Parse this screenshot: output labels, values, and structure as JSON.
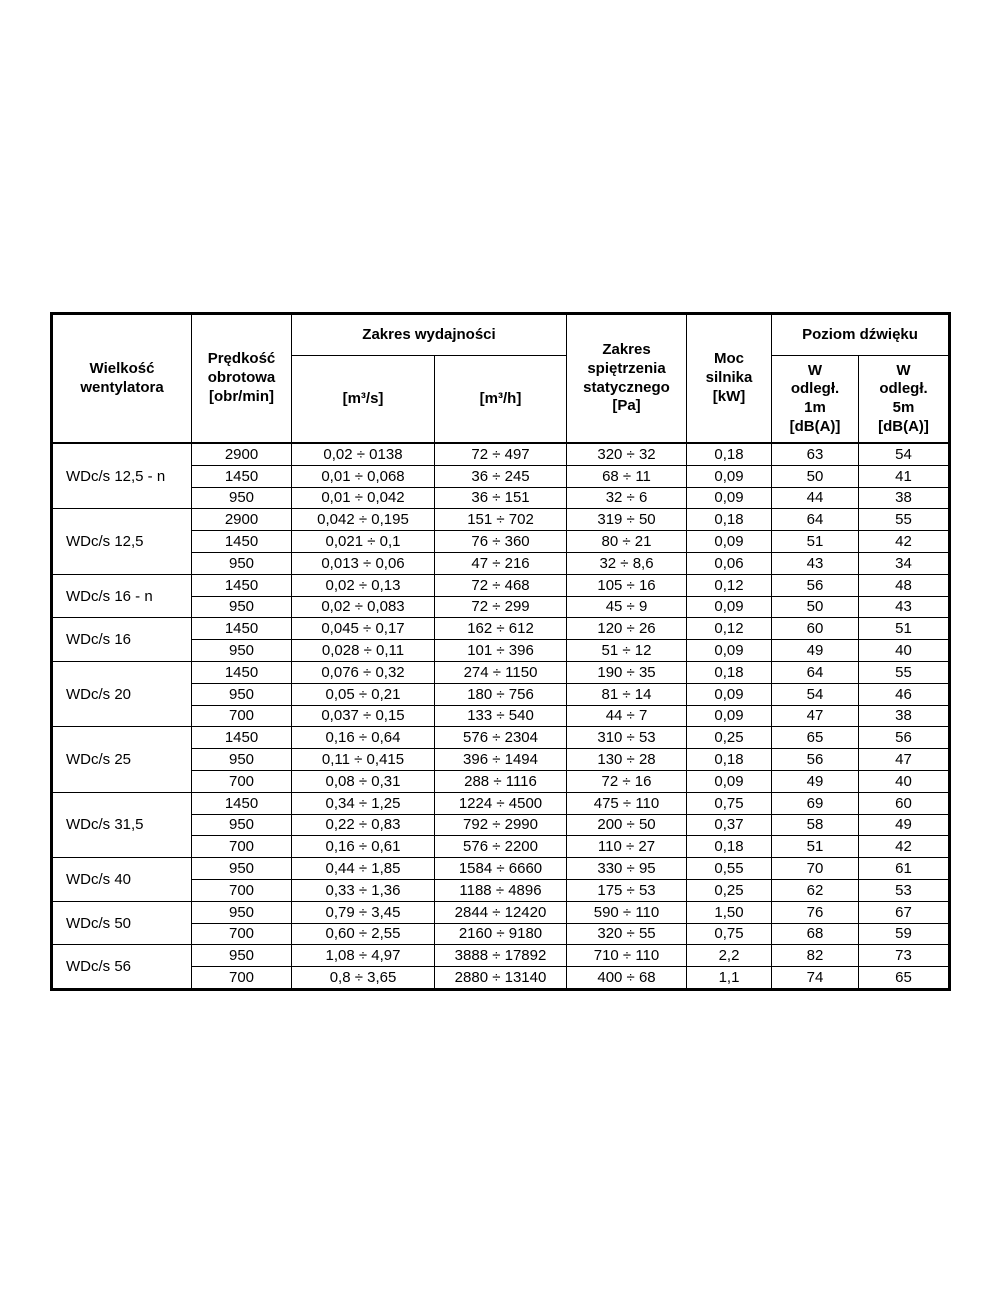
{
  "page": {
    "background": "#ffffff",
    "text_color": "#000000"
  },
  "table": {
    "header": {
      "fan_size": "Wielkość\nwentylatora",
      "speed": "Prędkość\nobrotowa\n[obr/min]",
      "capacity_group": "Zakres  wydajności",
      "capacity_m3s": "[m³/s]",
      "capacity_m3h": "[m³/h]",
      "static_pressure": "Zakres\nspiętrzenia\nstatycznego\n[Pa]",
      "motor_power": "Moc\nsilnika\n[kW]",
      "sound_group": "Poziom  dźwięku",
      "sound_1m": "W\nodległ.\n1m\n[dB(A)]",
      "sound_5m": "W\nodległ.\n5m\n[dB(A)]"
    },
    "column_names": [
      "speed",
      "capacity_m3s",
      "capacity_m3h",
      "static_pressure",
      "motor_power",
      "sound_1m",
      "sound_5m"
    ],
    "groups": [
      {
        "name": "WDc/s 12,5 - n",
        "rows": [
          [
            "2900",
            "0,02 ÷ 0138",
            "72 ÷ 497",
            "320 ÷ 32",
            "0,18",
            "63",
            "54"
          ],
          [
            "1450",
            "0,01 ÷ 0,068",
            "36 ÷ 245",
            "68 ÷ 11",
            "0,09",
            "50",
            "41"
          ],
          [
            "950",
            "0,01 ÷ 0,042",
            "36 ÷ 151",
            "32 ÷ 6",
            "0,09",
            "44",
            "38"
          ]
        ]
      },
      {
        "name": "WDc/s 12,5",
        "rows": [
          [
            "2900",
            "0,042 ÷ 0,195",
            "151 ÷ 702",
            "319 ÷ 50",
            "0,18",
            "64",
            "55"
          ],
          [
            "1450",
            "0,021 ÷ 0,1",
            "76 ÷ 360",
            "80 ÷ 21",
            "0,09",
            "51",
            "42"
          ],
          [
            "950",
            "0,013 ÷ 0,06",
            "47 ÷ 216",
            "32 ÷ 8,6",
            "0,06",
            "43",
            "34"
          ]
        ]
      },
      {
        "name": "WDc/s 16 - n",
        "rows": [
          [
            "1450",
            "0,02 ÷ 0,13",
            "72 ÷ 468",
            "105 ÷ 16",
            "0,12",
            "56",
            "48"
          ],
          [
            "950",
            "0,02 ÷ 0,083",
            "72 ÷ 299",
            "45 ÷ 9",
            "0,09",
            "50",
            "43"
          ]
        ]
      },
      {
        "name": "WDc/s 16",
        "rows": [
          [
            "1450",
            "0,045 ÷ 0,17",
            "162 ÷ 612",
            "120 ÷ 26",
            "0,12",
            "60",
            "51"
          ],
          [
            "950",
            "0,028 ÷ 0,11",
            "101 ÷ 396",
            "51 ÷ 12",
            "0,09",
            "49",
            "40"
          ]
        ]
      },
      {
        "name": "WDc/s 20",
        "rows": [
          [
            "1450",
            "0,076 ÷ 0,32",
            "274 ÷ 1150",
            "190 ÷ 35",
            "0,18",
            "64",
            "55"
          ],
          [
            "950",
            "0,05 ÷ 0,21",
            "180 ÷ 756",
            "81 ÷ 14",
            "0,09",
            "54",
            "46"
          ],
          [
            "700",
            "0,037 ÷ 0,15",
            "133 ÷ 540",
            "44 ÷ 7",
            "0,09",
            "47",
            "38"
          ]
        ]
      },
      {
        "name": "WDc/s 25",
        "rows": [
          [
            "1450",
            "0,16 ÷ 0,64",
            "576 ÷ 2304",
            "310 ÷ 53",
            "0,25",
            "65",
            "56"
          ],
          [
            "950",
            "0,11 ÷ 0,415",
            "396 ÷ 1494",
            "130 ÷ 28",
            "0,18",
            "56",
            "47"
          ],
          [
            "700",
            "0,08 ÷ 0,31",
            "288 ÷ 1116",
            "72 ÷ 16",
            "0,09",
            "49",
            "40"
          ]
        ]
      },
      {
        "name": "WDc/s 31,5",
        "rows": [
          [
            "1450",
            "0,34 ÷ 1,25",
            "1224 ÷ 4500",
            "475 ÷ 110",
            "0,75",
            "69",
            "60"
          ],
          [
            "950",
            "0,22 ÷ 0,83",
            "792 ÷ 2990",
            "200 ÷ 50",
            "0,37",
            "58",
            "49"
          ],
          [
            "700",
            "0,16 ÷ 0,61",
            "576 ÷ 2200",
            "110 ÷ 27",
            "0,18",
            "51",
            "42"
          ]
        ]
      },
      {
        "name": "WDc/s 40",
        "rows": [
          [
            "950",
            "0,44 ÷ 1,85",
            "1584 ÷ 6660",
            "330 ÷ 95",
            "0,55",
            "70",
            "61"
          ],
          [
            "700",
            "0,33 ÷ 1,36",
            "1188 ÷ 4896",
            "175 ÷ 53",
            "0,25",
            "62",
            "53"
          ]
        ]
      },
      {
        "name": "WDc/s 50",
        "rows": [
          [
            "950",
            "0,79 ÷ 3,45",
            "2844 ÷ 12420",
            "590 ÷ 110",
            "1,50",
            "76",
            "67"
          ],
          [
            "700",
            "0,60 ÷ 2,55",
            "2160 ÷ 9180",
            "320 ÷ 55",
            "0,75",
            "68",
            "59"
          ]
        ]
      },
      {
        "name": "WDc/s 56",
        "rows": [
          [
            "950",
            "1,08 ÷ 4,97",
            "3888 ÷ 17892",
            "710 ÷ 110",
            "2,2",
            "82",
            "73"
          ],
          [
            "700",
            "0,8 ÷ 3,65",
            "2880 ÷ 13140",
            "400 ÷ 68",
            "1,1",
            "74",
            "65"
          ]
        ]
      }
    ]
  }
}
